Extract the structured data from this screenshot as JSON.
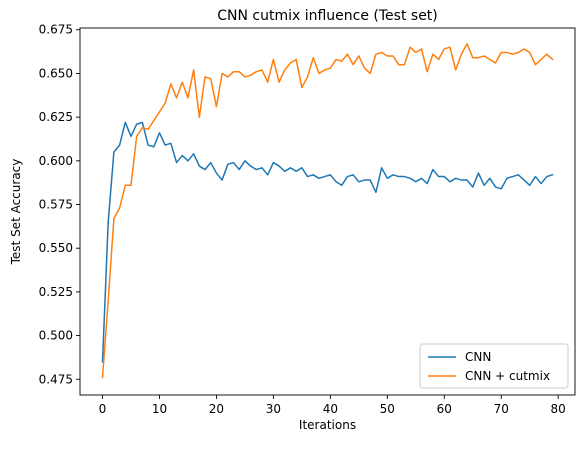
{
  "chart_data": {
    "type": "line",
    "title": "CNN cutmix influence (Test set)",
    "xlabel": "Iterations",
    "ylabel": "Test Set Accuracy",
    "xlim": [
      -3.95,
      82.95
    ],
    "ylim": [
      0.466,
      0.676
    ],
    "xticks": [
      0,
      10,
      20,
      30,
      40,
      50,
      60,
      70,
      80
    ],
    "yticks": [
      0.475,
      0.5,
      0.525,
      0.55,
      0.575,
      0.6,
      0.625,
      0.65,
      0.675
    ],
    "xtick_labels": [
      "0",
      "10",
      "20",
      "30",
      "40",
      "50",
      "60",
      "70",
      "80"
    ],
    "ytick_labels": [
      "0.475",
      "0.500",
      "0.525",
      "0.550",
      "0.575",
      "0.600",
      "0.625",
      "0.650",
      "0.675"
    ],
    "grid": false,
    "legend_position": "lower-right",
    "series": [
      {
        "name": "CNN",
        "color": "#1f77b4",
        "x": [
          0,
          1,
          2,
          3,
          4,
          5,
          6,
          7,
          8,
          9,
          10,
          11,
          12,
          13,
          14,
          15,
          16,
          17,
          18,
          19,
          20,
          21,
          22,
          23,
          24,
          25,
          26,
          27,
          28,
          29,
          30,
          31,
          32,
          33,
          34,
          35,
          36,
          37,
          38,
          39,
          40,
          41,
          42,
          43,
          44,
          45,
          46,
          47,
          48,
          49,
          50,
          51,
          52,
          53,
          54,
          55,
          56,
          57,
          58,
          59,
          60,
          61,
          62,
          63,
          64,
          65,
          66,
          67,
          68,
          69,
          70,
          71,
          72,
          73,
          74,
          75,
          76,
          77,
          78,
          79
        ],
        "values": [
          0.485,
          0.565,
          0.605,
          0.609,
          0.622,
          0.614,
          0.621,
          0.622,
          0.609,
          0.608,
          0.616,
          0.609,
          0.61,
          0.599,
          0.603,
          0.6,
          0.604,
          0.597,
          0.595,
          0.599,
          0.593,
          0.589,
          0.598,
          0.599,
          0.595,
          0.6,
          0.597,
          0.595,
          0.596,
          0.592,
          0.599,
          0.597,
          0.594,
          0.596,
          0.594,
          0.596,
          0.591,
          0.592,
          0.59,
          0.591,
          0.592,
          0.588,
          0.586,
          0.591,
          0.592,
          0.588,
          0.589,
          0.589,
          0.582,
          0.596,
          0.59,
          0.592,
          0.591,
          0.591,
          0.59,
          0.588,
          0.59,
          0.587,
          0.595,
          0.591,
          0.591,
          0.588,
          0.59,
          0.589,
          0.589,
          0.585,
          0.593,
          0.586,
          0.59,
          0.585,
          0.584,
          0.59,
          0.591,
          0.592,
          0.589,
          0.586,
          0.591,
          0.587,
          0.591,
          0.592
        ]
      },
      {
        "name": "CNN + cutmix",
        "color": "#ff7f0e",
        "x": [
          0,
          1,
          2,
          3,
          4,
          5,
          6,
          7,
          8,
          9,
          10,
          11,
          12,
          13,
          14,
          15,
          16,
          17,
          18,
          19,
          20,
          21,
          22,
          23,
          24,
          25,
          26,
          27,
          28,
          29,
          30,
          31,
          32,
          33,
          34,
          35,
          36,
          37,
          38,
          39,
          40,
          41,
          42,
          43,
          44,
          45,
          46,
          47,
          48,
          49,
          50,
          51,
          52,
          53,
          54,
          55,
          56,
          57,
          58,
          59,
          60,
          61,
          62,
          63,
          64,
          65,
          66,
          67,
          68,
          69,
          70,
          71,
          72,
          73,
          74,
          75,
          76,
          77,
          78,
          79
        ],
        "values": [
          0.476,
          0.52,
          0.567,
          0.573,
          0.586,
          0.586,
          0.614,
          0.619,
          0.618,
          0.623,
          0.628,
          0.633,
          0.644,
          0.636,
          0.645,
          0.636,
          0.652,
          0.625,
          0.648,
          0.647,
          0.631,
          0.65,
          0.648,
          0.651,
          0.651,
          0.648,
          0.649,
          0.651,
          0.652,
          0.645,
          0.658,
          0.645,
          0.652,
          0.656,
          0.658,
          0.642,
          0.648,
          0.659,
          0.65,
          0.652,
          0.653,
          0.658,
          0.657,
          0.661,
          0.655,
          0.66,
          0.653,
          0.65,
          0.661,
          0.662,
          0.66,
          0.66,
          0.655,
          0.655,
          0.665,
          0.662,
          0.664,
          0.651,
          0.661,
          0.658,
          0.664,
          0.665,
          0.652,
          0.661,
          0.667,
          0.659,
          0.659,
          0.66,
          0.658,
          0.656,
          0.662,
          0.662,
          0.661,
          0.662,
          0.664,
          0.662,
          0.655,
          0.658,
          0.661,
          0.658
        ]
      }
    ]
  }
}
